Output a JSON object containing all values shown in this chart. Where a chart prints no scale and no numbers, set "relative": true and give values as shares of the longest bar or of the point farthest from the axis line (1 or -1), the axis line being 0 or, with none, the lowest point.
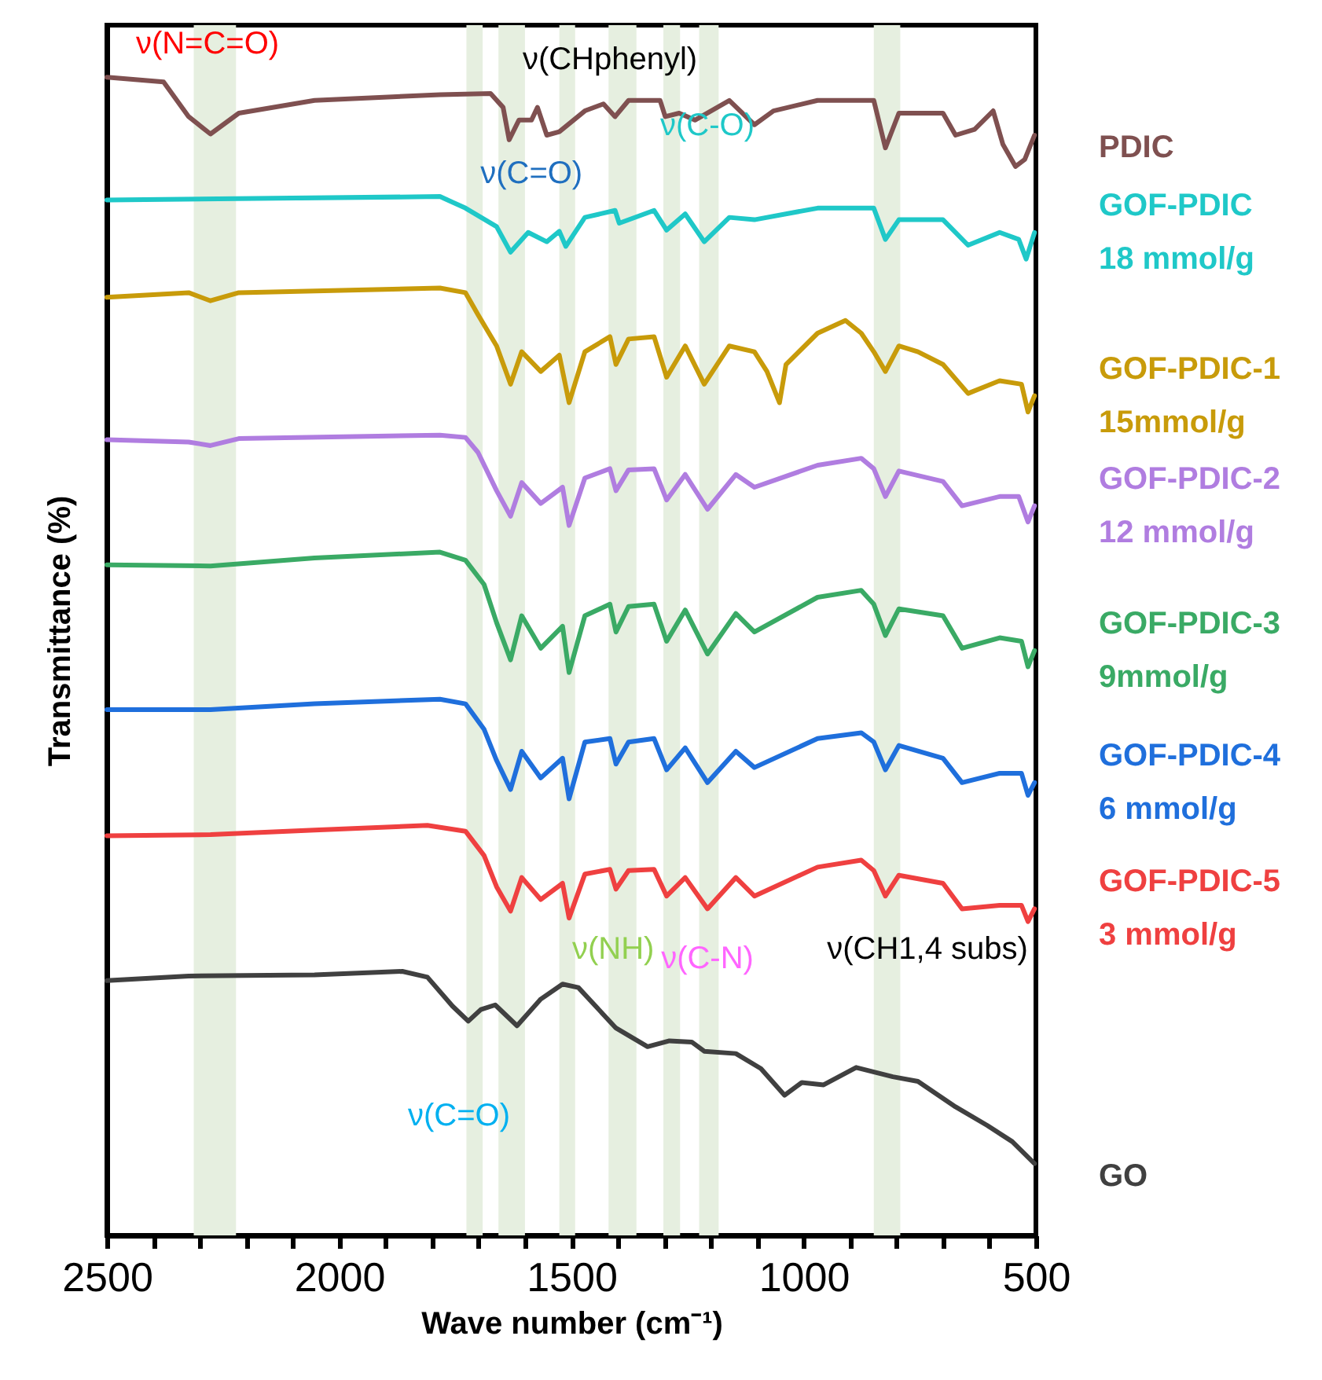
{
  "chart_data": {
    "type": "line",
    "relative": true,
    "xlabel": "Wave number (cm⁻¹)",
    "ylabel": "Transmittance (%)",
    "xlim": [
      2500,
      500
    ],
    "xticks": [
      2500,
      {
        "value": 2400,
        "label": null
      },
      {
        "value": 2300,
        "label": null
      },
      {
        "value": 2200,
        "label": null
      },
      {
        "value": 2100,
        "label": null
      },
      2000,
      {
        "value": 1900,
        "label": null
      },
      {
        "value": 1800,
        "label": null
      },
      {
        "value": 1700,
        "label": null
      },
      {
        "value": 1600,
        "label": null
      },
      1500,
      {
        "value": 1400,
        "label": null
      },
      {
        "value": 1300,
        "label": null
      },
      {
        "value": 1200,
        "label": null
      },
      {
        "value": 1100,
        "label": null
      },
      1000,
      {
        "value": 900,
        "label": null
      },
      {
        "value": 800,
        "label": null
      },
      {
        "value": 700,
        "label": null
      },
      {
        "value": 600,
        "label": null
      },
      500
    ],
    "grid": false,
    "tick_labels": "x",
    "series": [
      {
        "name": "PDIC",
        "color": "#7f5050",
        "x": [
          2500,
          2378,
          2324,
          2277,
          2216,
          2053,
          1783,
          1674,
          1647,
          1634,
          1613,
          1586,
          1573,
          1553,
          1526,
          1471,
          1431,
          1406,
          1377,
          1309,
          1298,
          1268,
          1234,
          1160,
          1106,
          1065,
          970,
          849,
          824,
          795,
          700,
          673,
          632,
          592,
          571,
          544,
          524,
          503
        ],
        "values": [
          1.0,
          0.996,
          0.966,
          0.951,
          0.969,
          0.98,
          0.985,
          0.986,
          0.974,
          0.946,
          0.963,
          0.963,
          0.974,
          0.95,
          0.953,
          0.971,
          0.977,
          0.966,
          0.98,
          0.98,
          0.966,
          0.969,
          0.963,
          0.98,
          0.959,
          0.971,
          0.98,
          0.98,
          0.939,
          0.969,
          0.969,
          0.95,
          0.955,
          0.971,
          0.942,
          0.923,
          0.929,
          0.95
        ]
      },
      {
        "name": "GOF-PDIC\n18 mmol/g",
        "color": "#1fc8c8",
        "x": [
          2500,
          1783,
          1728,
          1661,
          1631,
          1593,
          1553,
          1526,
          1512,
          1471,
          1406,
          1397,
          1322,
          1295,
          1255,
          1214,
          1160,
          1106,
          970,
          849,
          824,
          795,
          700,
          646,
          578,
          537,
          521,
          503
        ],
        "values": [
          0.894,
          0.897,
          0.887,
          0.871,
          0.849,
          0.866,
          0.858,
          0.867,
          0.854,
          0.879,
          0.885,
          0.874,
          0.885,
          0.868,
          0.882,
          0.858,
          0.879,
          0.877,
          0.887,
          0.887,
          0.86,
          0.877,
          0.877,
          0.855,
          0.866,
          0.86,
          0.843,
          0.866
        ]
      },
      {
        "name": "GOF-PDIC-1\n15mmol/g",
        "color": "#c89b0a",
        "x": [
          2500,
          2324,
          2277,
          2216,
          1783,
          1728,
          1701,
          1661,
          1631,
          1607,
          1566,
          1526,
          1505,
          1471,
          1417,
          1404,
          1377,
          1322,
          1295,
          1255,
          1214,
          1160,
          1106,
          1079,
          1052,
          1038,
          970,
          910,
          876,
          849,
          824,
          795,
          754,
          700,
          646,
          578,
          531,
          517,
          503
        ],
        "values": [
          0.81,
          0.814,
          0.807,
          0.814,
          0.818,
          0.814,
          0.795,
          0.768,
          0.735,
          0.763,
          0.746,
          0.76,
          0.719,
          0.763,
          0.776,
          0.752,
          0.774,
          0.776,
          0.741,
          0.768,
          0.735,
          0.768,
          0.763,
          0.746,
          0.719,
          0.752,
          0.779,
          0.79,
          0.779,
          0.763,
          0.746,
          0.768,
          0.763,
          0.752,
          0.727,
          0.738,
          0.735,
          0.711,
          0.725
        ]
      },
      {
        "name": "GOF-PDIC-2\n12 mmol/g",
        "color": "#b07de0",
        "x": [
          2500,
          2324,
          2277,
          2216,
          1783,
          1728,
          1701,
          1661,
          1631,
          1607,
          1566,
          1519,
          1505,
          1471,
          1417,
          1404,
          1377,
          1322,
          1295,
          1255,
          1207,
          1146,
          1106,
          970,
          876,
          849,
          824,
          795,
          700,
          659,
          578,
          537,
          517,
          503
        ],
        "values": [
          0.687,
          0.685,
          0.682,
          0.688,
          0.691,
          0.689,
          0.676,
          0.643,
          0.621,
          0.65,
          0.632,
          0.646,
          0.613,
          0.654,
          0.662,
          0.643,
          0.661,
          0.662,
          0.635,
          0.657,
          0.627,
          0.657,
          0.646,
          0.665,
          0.671,
          0.662,
          0.638,
          0.66,
          0.651,
          0.63,
          0.638,
          0.638,
          0.616,
          0.63
        ]
      },
      {
        "name": "GOF-PDIC-3\n9mmol/g",
        "color": "#3aaa65",
        "x": [
          2500,
          2277,
          2053,
          1783,
          1728,
          1688,
          1661,
          1631,
          1607,
          1566,
          1519,
          1505,
          1471,
          1417,
          1404,
          1377,
          1322,
          1295,
          1255,
          1207,
          1146,
          1106,
          970,
          876,
          849,
          824,
          795,
          700,
          659,
          578,
          531,
          517,
          503
        ],
        "values": [
          0.579,
          0.578,
          0.585,
          0.59,
          0.583,
          0.562,
          0.529,
          0.497,
          0.535,
          0.507,
          0.526,
          0.486,
          0.535,
          0.545,
          0.521,
          0.543,
          0.545,
          0.513,
          0.54,
          0.502,
          0.537,
          0.521,
          0.551,
          0.557,
          0.545,
          0.518,
          0.541,
          0.535,
          0.507,
          0.516,
          0.513,
          0.491,
          0.505
        ]
      },
      {
        "name": "GOF-PDIC-4\n6 mmol/g",
        "color": "#1f6fdc",
        "x": [
          2500,
          2277,
          2053,
          1783,
          1728,
          1688,
          1661,
          1631,
          1607,
          1566,
          1519,
          1505,
          1471,
          1417,
          1404,
          1377,
          1322,
          1295,
          1255,
          1207,
          1146,
          1106,
          970,
          876,
          849,
          824,
          795,
          700,
          659,
          578,
          531,
          517,
          503
        ],
        "values": [
          0.454,
          0.454,
          0.459,
          0.463,
          0.459,
          0.437,
          0.41,
          0.385,
          0.418,
          0.395,
          0.412,
          0.377,
          0.426,
          0.429,
          0.407,
          0.426,
          0.429,
          0.402,
          0.421,
          0.391,
          0.418,
          0.404,
          0.429,
          0.434,
          0.426,
          0.402,
          0.423,
          0.412,
          0.391,
          0.399,
          0.399,
          0.38,
          0.391
        ]
      },
      {
        "name": "GOF-PDIC-5\n3 mmol/g",
        "color": "#ef4040",
        "x": [
          2500,
          2277,
          2053,
          1810,
          1728,
          1688,
          1661,
          1631,
          1607,
          1566,
          1519,
          1505,
          1471,
          1417,
          1404,
          1377,
          1322,
          1295,
          1255,
          1207,
          1146,
          1106,
          970,
          876,
          849,
          824,
          795,
          700,
          659,
          578,
          531,
          517,
          503
        ],
        "values": [
          0.345,
          0.346,
          0.35,
          0.354,
          0.349,
          0.328,
          0.301,
          0.28,
          0.309,
          0.29,
          0.304,
          0.274,
          0.312,
          0.316,
          0.299,
          0.315,
          0.316,
          0.293,
          0.309,
          0.282,
          0.309,
          0.293,
          0.318,
          0.324,
          0.315,
          0.293,
          0.311,
          0.304,
          0.282,
          0.285,
          0.285,
          0.271,
          0.282
        ]
      },
      {
        "name": "GO",
        "color": "#404040",
        "x": [
          2500,
          2324,
          2053,
          1864,
          1810,
          1756,
          1722,
          1695,
          1664,
          1617,
          1566,
          1519,
          1485,
          1404,
          1336,
          1289,
          1241,
          1214,
          1146,
          1092,
          1041,
          1004,
          957,
          887,
          808,
          754,
          673,
          605,
          551,
          503
        ],
        "values": [
          0.22,
          0.224,
          0.225,
          0.228,
          0.223,
          0.198,
          0.185,
          0.195,
          0.199,
          0.181,
          0.204,
          0.217,
          0.214,
          0.179,
          0.163,
          0.168,
          0.167,
          0.159,
          0.157,
          0.144,
          0.121,
          0.132,
          0.13,
          0.145,
          0.137,
          0.133,
          0.111,
          0.095,
          0.081,
          0.062
        ]
      }
    ],
    "bands": [
      {
        "axis": "x",
        "from": 2313,
        "to": 2222,
        "color": "#e6efe0"
      },
      {
        "axis": "x",
        "from": 1726,
        "to": 1691,
        "color": "#e6efe0"
      },
      {
        "axis": "x",
        "from": 1657,
        "to": 1600,
        "color": "#e6efe0"
      },
      {
        "axis": "x",
        "from": 1526,
        "to": 1492,
        "color": "#e6efe0"
      },
      {
        "axis": "x",
        "from": 1420,
        "to": 1360,
        "color": "#e6efe0"
      },
      {
        "axis": "x",
        "from": 1302,
        "to": 1266,
        "color": "#e6efe0"
      },
      {
        "axis": "x",
        "from": 1225,
        "to": 1183,
        "color": "#e6efe0"
      },
      {
        "axis": "x",
        "from": 849,
        "to": 792,
        "color": "#e6efe0"
      }
    ],
    "annotations": [
      "ν(N=C=O)",
      {
        "text": "ν(CHphenyl)",
        "x": 1417,
        "y": 1.015
      },
      {
        "text": "ν(C=O)",
        "x": 1586,
        "y": 0.917
      },
      "ν(C-O)",
      {
        "text": "ν(NH)",
        "x": 1410,
        "y": 0.247
      },
      "ν(C-N)",
      "ν(CH1,4 subs)",
      {
        "text": "ν(C=O)",
        "x": 1742,
        "y": 0.103
      }
    ]
  }
}
